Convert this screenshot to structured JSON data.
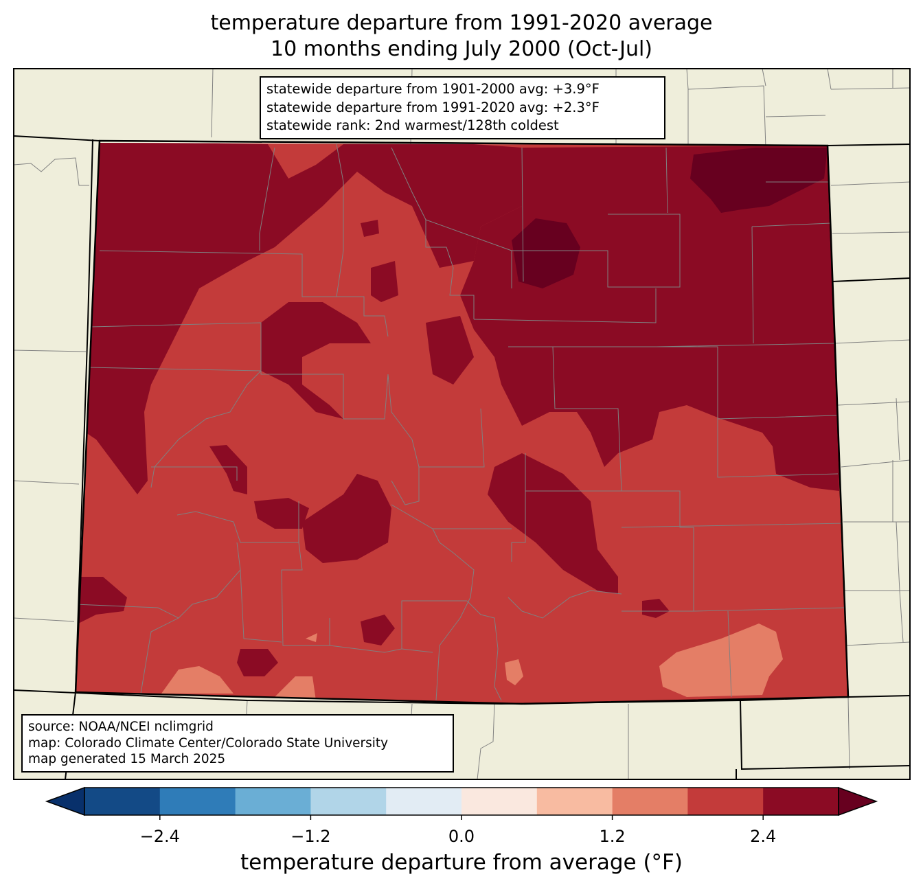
{
  "title": {
    "line1": "temperature departure from 1991-2020 average",
    "line2": "10 months ending July 2000 (Oct-Jul)"
  },
  "stats": {
    "line1": "statewide departure from 1901-2000 avg: +3.9°F",
    "line2": "statewide departure from 1991-2020 avg: +2.3°F",
    "line3": "statewide rank: 2nd warmest/128th coldest"
  },
  "credits": {
    "line1": "source: NOAA/NCEI nclimgrid",
    "line2": "map: Colorado Climate Center/Colorado State University",
    "line3": "map generated 15 March 2025"
  },
  "colorbar": {
    "label": "temperature departure from average (°F)",
    "min": -3.0,
    "max": 3.0,
    "step": 0.6,
    "extend": "both",
    "colors": [
      "#08306b",
      "#134a86",
      "#2f7cb8",
      "#6aaed5",
      "#b1d5e8",
      "#e2ecf4",
      "#fae8df",
      "#f8bba1",
      "#e47e66",
      "#c33b3a",
      "#8b0b24",
      "#67001f"
    ],
    "ticks": [
      "−2.4",
      "−1.2",
      "0.0",
      "1.2",
      "2.4"
    ],
    "tick_values": [
      -2.4,
      -1.2,
      0.0,
      1.2,
      2.4
    ]
  },
  "colors": {
    "land": "#efeedb",
    "county_lines": "#808080",
    "state_lines": "#000000",
    "warm_2_4_3_0": "#8b0b24",
    "warm_above_3_0": "#67001f",
    "warm_1_8_2_4": "#c33b3a",
    "warm_1_2_1_8": "#e47e66"
  }
}
